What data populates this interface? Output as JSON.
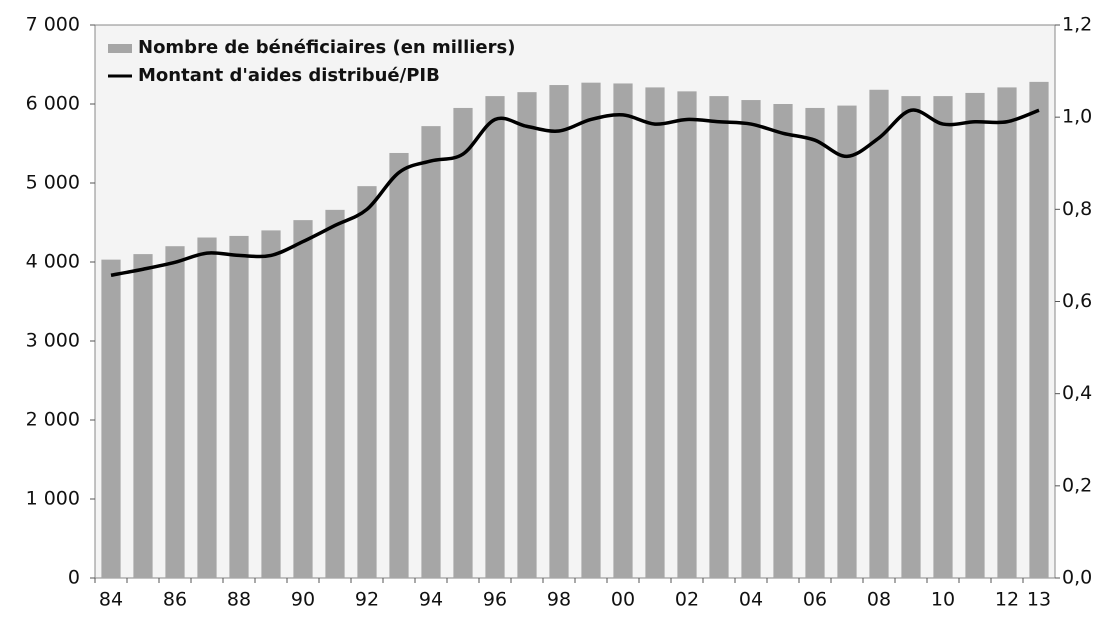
{
  "chart_data": {
    "type": "bar",
    "categories": [
      "84",
      null,
      "86",
      null,
      "88",
      null,
      "90",
      null,
      "92",
      null,
      "94",
      null,
      "96",
      null,
      "98",
      null,
      "00",
      null,
      "02",
      null,
      "04",
      null,
      "06",
      null,
      "08",
      null,
      "10",
      null,
      "12",
      "13"
    ],
    "series": [
      {
        "name": "Nombre de bénéficiaires (en milliers)",
        "type": "bar",
        "color": "#a6a6a6",
        "values": [
          4030,
          4100,
          4200,
          4310,
          4330,
          4400,
          4530,
          4660,
          4960,
          5380,
          5720,
          5950,
          6100,
          6150,
          6240,
          6270,
          6260,
          6210,
          6160,
          6100,
          6050,
          6000,
          5950,
          5980,
          6180,
          6100,
          6100,
          6140,
          6210,
          6280
        ]
      },
      {
        "name": "Montant d'aides distribué/PIB",
        "type": "line",
        "axis": "y2",
        "color": "#000000",
        "values": [
          0.657,
          0.67,
          0.685,
          0.705,
          0.7,
          0.7,
          0.73,
          0.765,
          0.8,
          0.88,
          0.905,
          0.92,
          0.995,
          0.98,
          0.97,
          0.995,
          1.005,
          0.985,
          0.995,
          0.99,
          0.985,
          0.965,
          0.95,
          0.915,
          0.955,
          1.015,
          0.985,
          0.99,
          0.99,
          1.015
        ]
      }
    ],
    "ylim": [
      0,
      7000
    ],
    "yticks": [
      0,
      {
        "value": 1000,
        "label": "1 000"
      },
      {
        "value": 2000,
        "label": "2 000"
      },
      {
        "value": 3000,
        "label": "3 000"
      },
      {
        "value": 4000,
        "label": "4 000"
      },
      {
        "value": 5000,
        "label": "5 000"
      },
      {
        "value": 6000,
        "label": "6 000"
      },
      {
        "value": 7000,
        "label": "7 000"
      }
    ],
    "y2lim": [
      0,
      1.2
    ],
    "y2ticks": [
      {
        "value": 0,
        "label": "0,0"
      },
      {
        "value": 0.2,
        "label": "0,2"
      },
      {
        "value": 0.4,
        "label": "0,4"
      },
      {
        "value": 0.6,
        "label": "0,6"
      },
      {
        "value": 0.8,
        "label": "0,8"
      },
      {
        "value": 1.0,
        "label": "1,0"
      },
      {
        "value": 1.2,
        "label": "1,2"
      }
    ],
    "legend": "top-left",
    "grid": false
  }
}
